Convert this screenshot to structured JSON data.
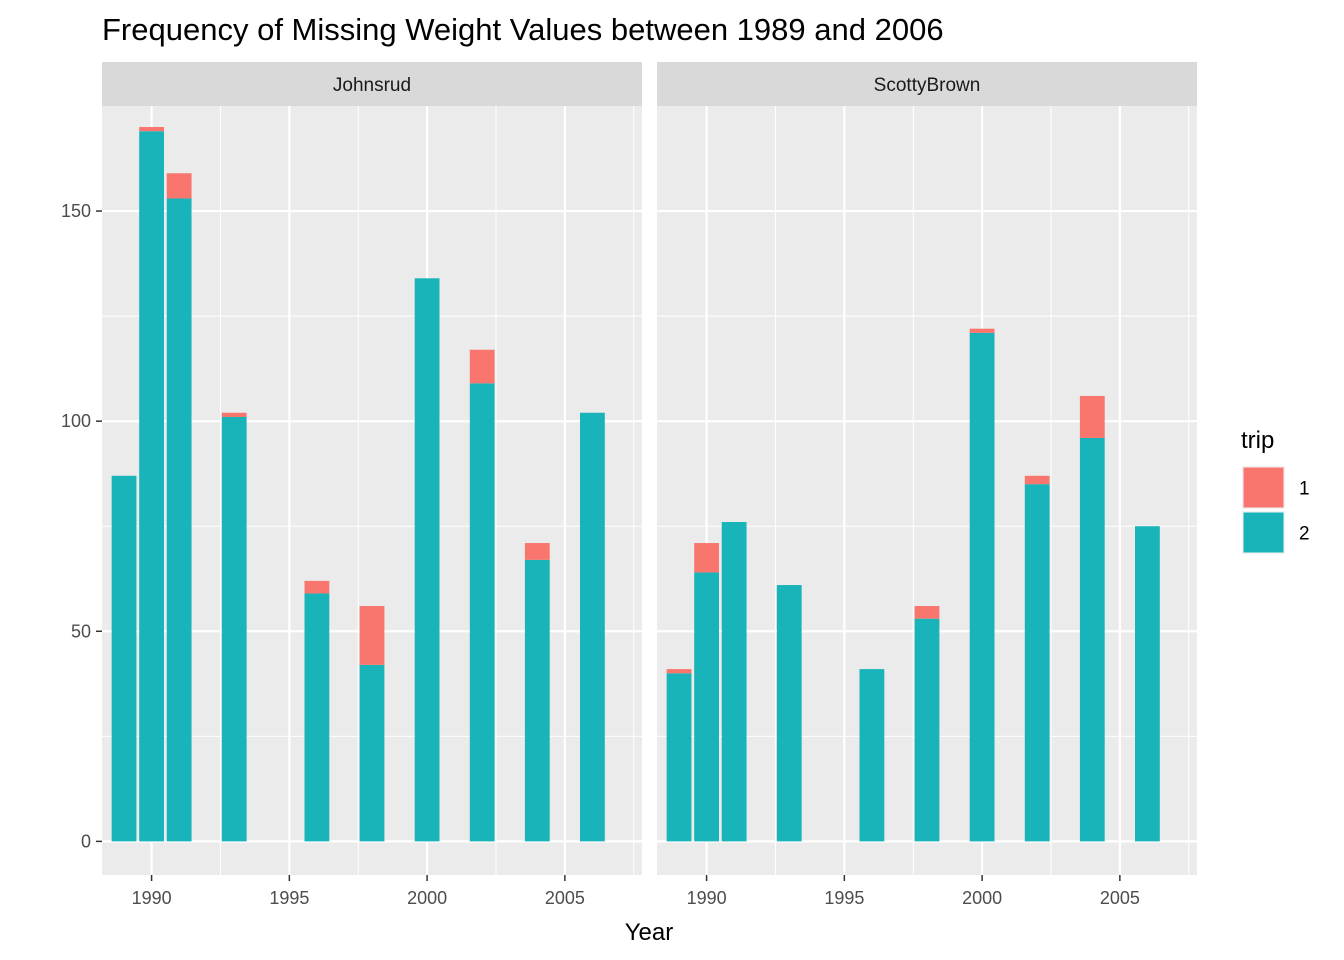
{
  "chart_data": {
    "type": "bar",
    "stacked": true,
    "title": "Frequency of Missing Weight Values between 1989 and 2006",
    "xlabel": "Year",
    "ylabel": "",
    "xlim": [
      1988.2,
      2007.8
    ],
    "ylim": [
      -8,
      175
    ],
    "x_ticks": [
      1990,
      1995,
      2000,
      2005
    ],
    "y_ticks": [
      0,
      50,
      100,
      150
    ],
    "grid": true,
    "legend": {
      "title": "trip",
      "position": "right",
      "entries": [
        {
          "label": "1",
          "color": "#F8766D"
        },
        {
          "label": "2",
          "color": "#19B4B9"
        }
      ]
    },
    "panels": [
      {
        "name": "Johnsrud",
        "bars": [
          {
            "x": 1989,
            "trip2": 87,
            "trip1": 0
          },
          {
            "x": 1990,
            "trip2": 169,
            "trip1": 1
          },
          {
            "x": 1991,
            "trip2": 153,
            "trip1": 6
          },
          {
            "x": 1993,
            "trip2": 101,
            "trip1": 1
          },
          {
            "x": 1996,
            "trip2": 59,
            "trip1": 3
          },
          {
            "x": 1998,
            "trip2": 42,
            "trip1": 14
          },
          {
            "x": 2000,
            "trip2": 134,
            "trip1": 0
          },
          {
            "x": 2002,
            "trip2": 109,
            "trip1": 8
          },
          {
            "x": 2004,
            "trip2": 67,
            "trip1": 4
          },
          {
            "x": 2006,
            "trip2": 102,
            "trip1": 0
          }
        ]
      },
      {
        "name": "ScottyBrown",
        "bars": [
          {
            "x": 1989,
            "trip2": 40,
            "trip1": 1
          },
          {
            "x": 1990,
            "trip2": 64,
            "trip1": 7
          },
          {
            "x": 1991,
            "trip2": 76,
            "trip1": 0
          },
          {
            "x": 1993,
            "trip2": 61,
            "trip1": 0
          },
          {
            "x": 1996,
            "trip2": 41,
            "trip1": 0
          },
          {
            "x": 1998,
            "trip2": 53,
            "trip1": 3
          },
          {
            "x": 2000,
            "trip2": 121,
            "trip1": 1
          },
          {
            "x": 2002,
            "trip2": 85,
            "trip1": 2
          },
          {
            "x": 2004,
            "trip2": 96,
            "trip1": 10
          },
          {
            "x": 2006,
            "trip2": 75,
            "trip1": 0
          }
        ]
      }
    ]
  }
}
